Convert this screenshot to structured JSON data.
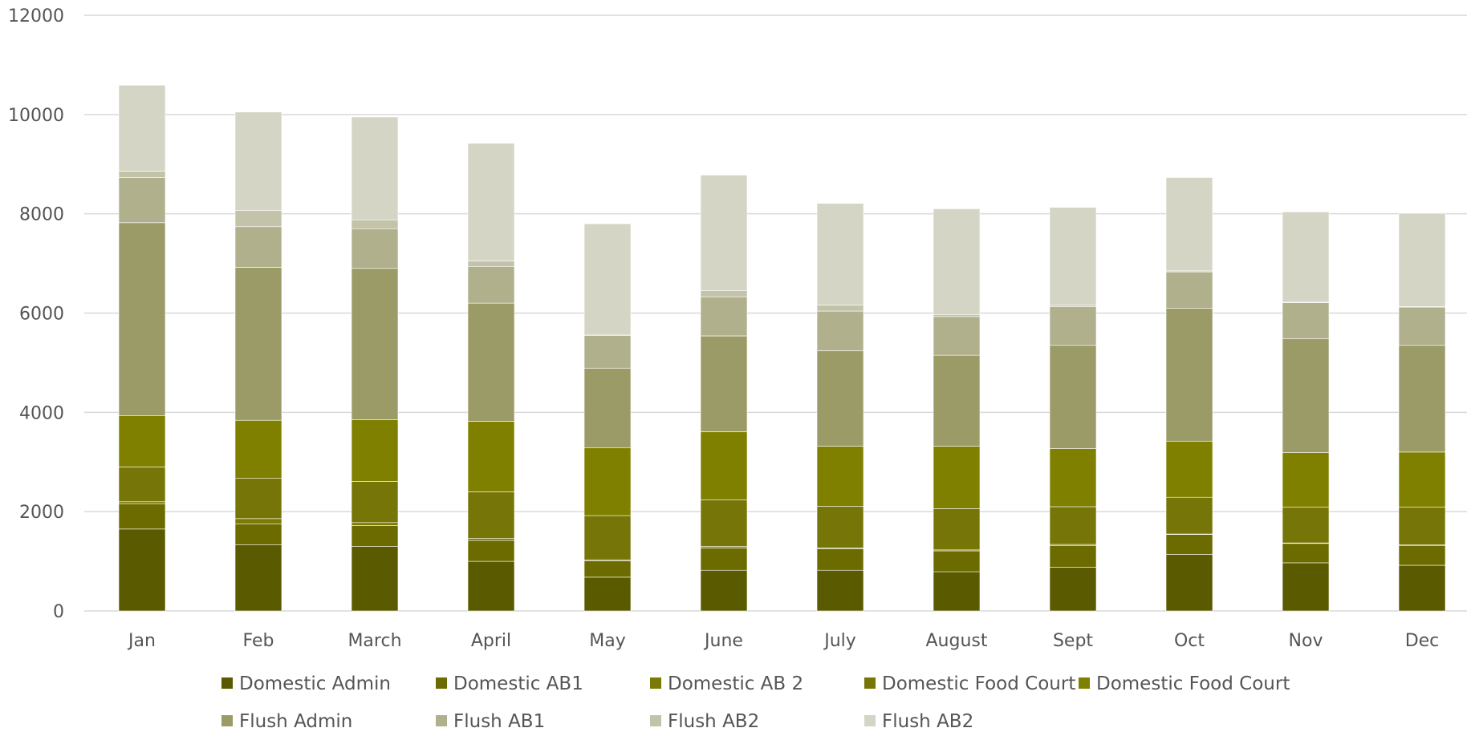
{
  "chart_data": {
    "type": "bar",
    "stacked": true,
    "categories": [
      "Jan",
      "Feb",
      "March",
      "April",
      "May",
      "June",
      "July",
      "August",
      "Sept",
      "Oct",
      "Nov",
      "Dec"
    ],
    "ylim": [
      0,
      12000
    ],
    "yticks": [
      0,
      2000,
      4000,
      6000,
      8000,
      10000,
      12000
    ],
    "grid": true,
    "legend_position": "bottom",
    "series": [
      {
        "name": "Domestic Admin",
        "color": "#5a5a00",
        "values": [
          1650,
          1330,
          1300,
          1000,
          680,
          820,
          820,
          790,
          880,
          1140,
          970,
          920
        ]
      },
      {
        "name": "Domestic AB1",
        "color": "#6b6b00",
        "values": [
          510,
          420,
          420,
          420,
          330,
          450,
          430,
          420,
          440,
          400,
          390,
          400
        ]
      },
      {
        "name": "Domestic AB 2",
        "color": "#7a7a05",
        "values": [
          40,
          110,
          60,
          40,
          20,
          30,
          20,
          20,
          20,
          10,
          10,
          10
        ]
      },
      {
        "name": "Domestic Food Court",
        "color": "#767608",
        "values": [
          700,
          810,
          830,
          940,
          890,
          940,
          840,
          830,
          760,
          740,
          720,
          760
        ]
      },
      {
        "name": "Domestic Food Court",
        "color": "#808000",
        "values": [
          1030,
          1170,
          1240,
          1420,
          1370,
          1370,
          1210,
          1260,
          1170,
          1130,
          1100,
          1110
        ]
      },
      {
        "name": "Flush Admin",
        "color": "#9b9b68",
        "values": [
          3890,
          3080,
          3050,
          2380,
          1600,
          1930,
          1920,
          1830,
          2080,
          2680,
          2290,
          2150
        ]
      },
      {
        "name": "Flush AB1",
        "color": "#b0b08d",
        "values": [
          910,
          820,
          800,
          740,
          660,
          790,
          800,
          780,
          780,
          730,
          730,
          770
        ]
      },
      {
        "name": "Flush AB2",
        "color": "#c3c3aa",
        "values": [
          130,
          330,
          180,
          110,
          20,
          120,
          120,
          40,
          30,
          20,
          10,
          10
        ]
      },
      {
        "name": "Flush AB2",
        "color": "#d5d5c5",
        "values": [
          1730,
          1980,
          2070,
          2370,
          2230,
          2330,
          2050,
          2130,
          1970,
          1880,
          1820,
          1880
        ]
      }
    ]
  }
}
